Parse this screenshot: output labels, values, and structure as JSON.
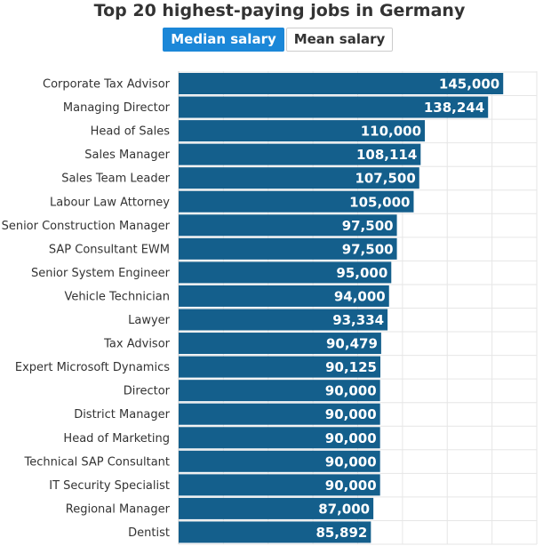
{
  "title": "Top 20 highest-paying jobs in Germany",
  "toggles": {
    "median_label": "Median salary",
    "mean_label": "Mean salary"
  },
  "colors": {
    "bar": "#145f8c",
    "active_toggle": "#1b87d8",
    "grid": "#e6e6e6"
  },
  "chart_data": {
    "type": "bar",
    "orientation": "horizontal",
    "title": "Top 20 highest-paying jobs in Germany",
    "categories": [
      "Corporate Tax Advisor",
      "Managing Director",
      "Head of Sales",
      "Sales Manager",
      "Sales Team Leader",
      "Labour Law Attorney",
      "Senior Construction Manager",
      "SAP Consultant EWM",
      "Senior System Engineer",
      "Vehicle Technician",
      "Lawyer",
      "Tax Advisor",
      "Expert Microsoft Dynamics",
      "Director",
      "District Manager",
      "Head of Marketing",
      "Technical SAP Consultant",
      "IT Security Specialist",
      "Regional Manager",
      "Dentist"
    ],
    "values": [
      145000,
      138244,
      110000,
      108114,
      107500,
      105000,
      97500,
      97500,
      95000,
      94000,
      93334,
      90479,
      90125,
      90000,
      90000,
      90000,
      90000,
      90000,
      87000,
      85892
    ],
    "value_labels": [
      "145,000",
      "138,244",
      "110,000",
      "108,114",
      "107,500",
      "105,000",
      "97,500",
      "97,500",
      "95,000",
      "94,000",
      "93,334",
      "90,479",
      "90,125",
      "90,000",
      "90,000",
      "90,000",
      "90,000",
      "90,000",
      "87,000",
      "85,892"
    ],
    "xlim": [
      0,
      160000
    ],
    "grid": true,
    "legend": "none"
  }
}
